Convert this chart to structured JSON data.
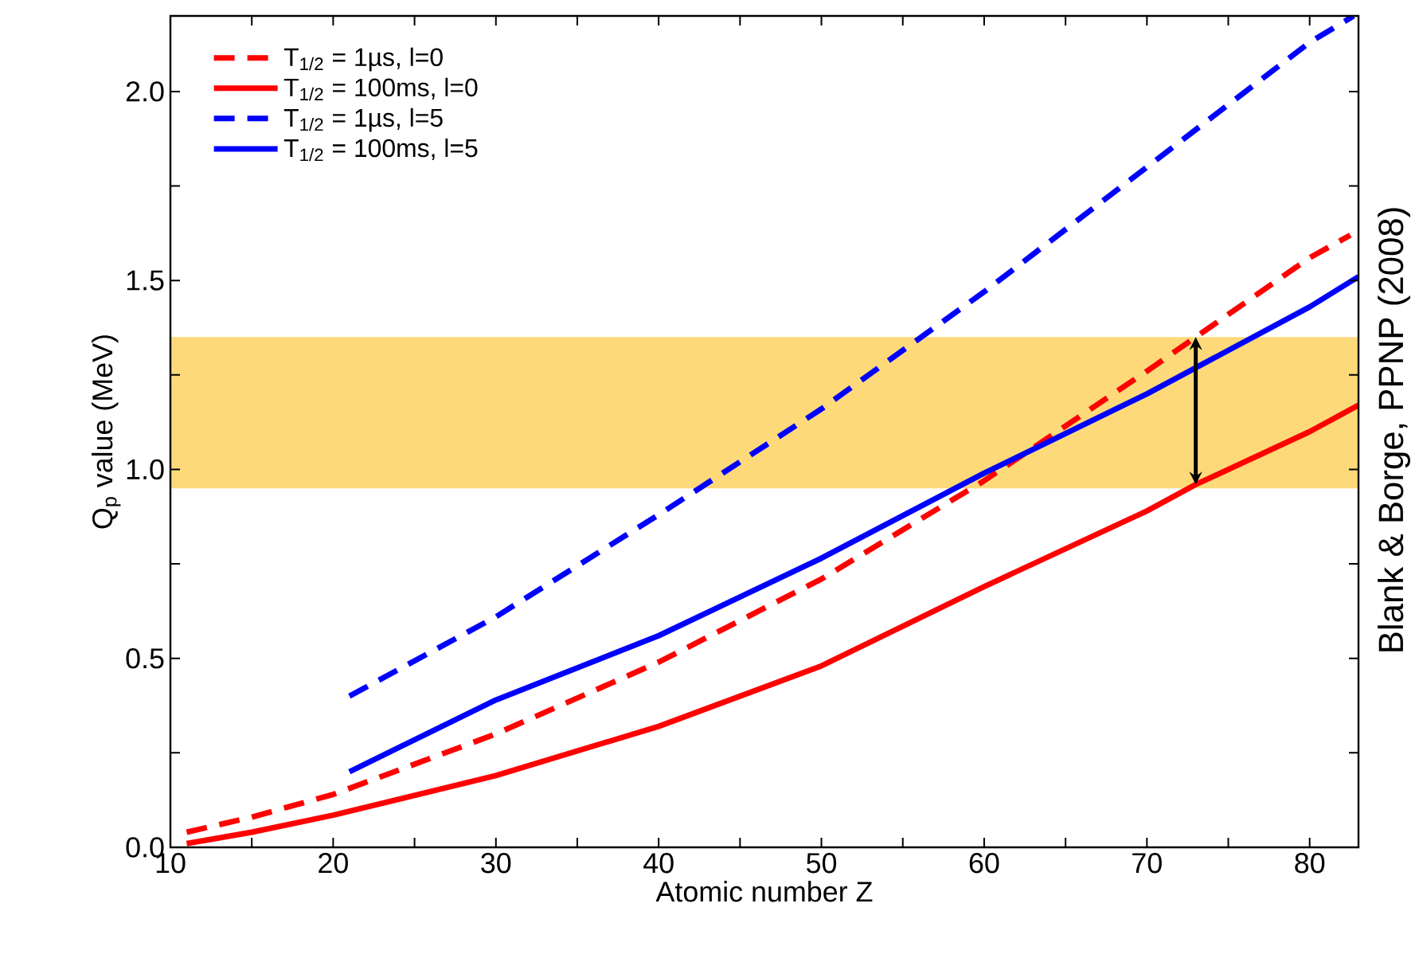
{
  "chart_data": {
    "type": "line",
    "xlabel": "Atomic number Z",
    "ylabel": "Q$_{p}$ value (MeV)",
    "annotations": [
      "Blank & Borge, PPNP (2008)"
    ],
    "xlim": [
      10,
      83
    ],
    "ylim": [
      0,
      2.2
    ],
    "xticks": [
      10,
      {
        "value": 15,
        "label": null
      },
      20,
      {
        "value": 25,
        "label": null
      },
      30,
      {
        "value": 35,
        "label": null
      },
      40,
      {
        "value": 45,
        "label": null
      },
      50,
      {
        "value": 55,
        "label": null
      },
      60,
      {
        "value": 65,
        "label": null
      },
      70,
      {
        "value": 75,
        "label": null
      },
      80
    ],
    "yticks": [
      {
        "value": 0,
        "label": "0.0"
      },
      {
        "value": 0.25,
        "label": null
      },
      0.5,
      {
        "value": 0.75,
        "label": null
      },
      {
        "value": 1,
        "label": "1.0"
      },
      {
        "value": 1.25,
        "label": null
      },
      1.5,
      {
        "value": 1.75,
        "label": null
      },
      {
        "value": 2,
        "label": "2.0"
      }
    ],
    "grid": false,
    "legend": "top left",
    "marker": "none",
    "bands": [
      {
        "axis": "y",
        "from": 0.95,
        "to": 1.35,
        "color": "#fdd97a"
      }
    ],
    "series": [
      {
        "name": "T$_{1/2}$ = 1µs, l=0",
        "color": "#ff0000",
        "line_style": "dashed",
        "x": [
          11,
          15,
          20,
          30,
          40,
          50,
          60,
          70,
          80,
          82.5
        ],
        "values": [
          0.04,
          0.08,
          0.14,
          0.3,
          0.49,
          0.71,
          0.97,
          1.26,
          1.56,
          1.62
        ]
      },
      {
        "name": "T$_{1/2}$ = 100ms, l=0",
        "color": "#ff0000",
        "line_style": "solid",
        "x": [
          11,
          15,
          20,
          30,
          40,
          50,
          60,
          70,
          73,
          80,
          83
        ],
        "values": [
          0.01,
          0.04,
          0.085,
          0.19,
          0.32,
          0.48,
          0.69,
          0.89,
          0.96,
          1.1,
          1.17
        ]
      },
      {
        "name": "T$_{1/2}$ = 1µs, l=5",
        "color": "#0000ff",
        "line_style": "dashed",
        "x": [
          21,
          30,
          40,
          50,
          60,
          70,
          80,
          82.7
        ],
        "values": [
          0.4,
          0.61,
          0.88,
          1.16,
          1.47,
          1.8,
          2.13,
          2.2
        ]
      },
      {
        "name": "T$_{1/2}$ = 100ms, l=5",
        "color": "#0000ff",
        "line_style": "solid",
        "x": [
          21,
          30,
          40,
          50,
          60,
          70,
          80,
          83
        ],
        "values": [
          0.2,
          0.39,
          0.56,
          0.765,
          0.99,
          1.2,
          1.43,
          1.51
        ]
      }
    ]
  }
}
